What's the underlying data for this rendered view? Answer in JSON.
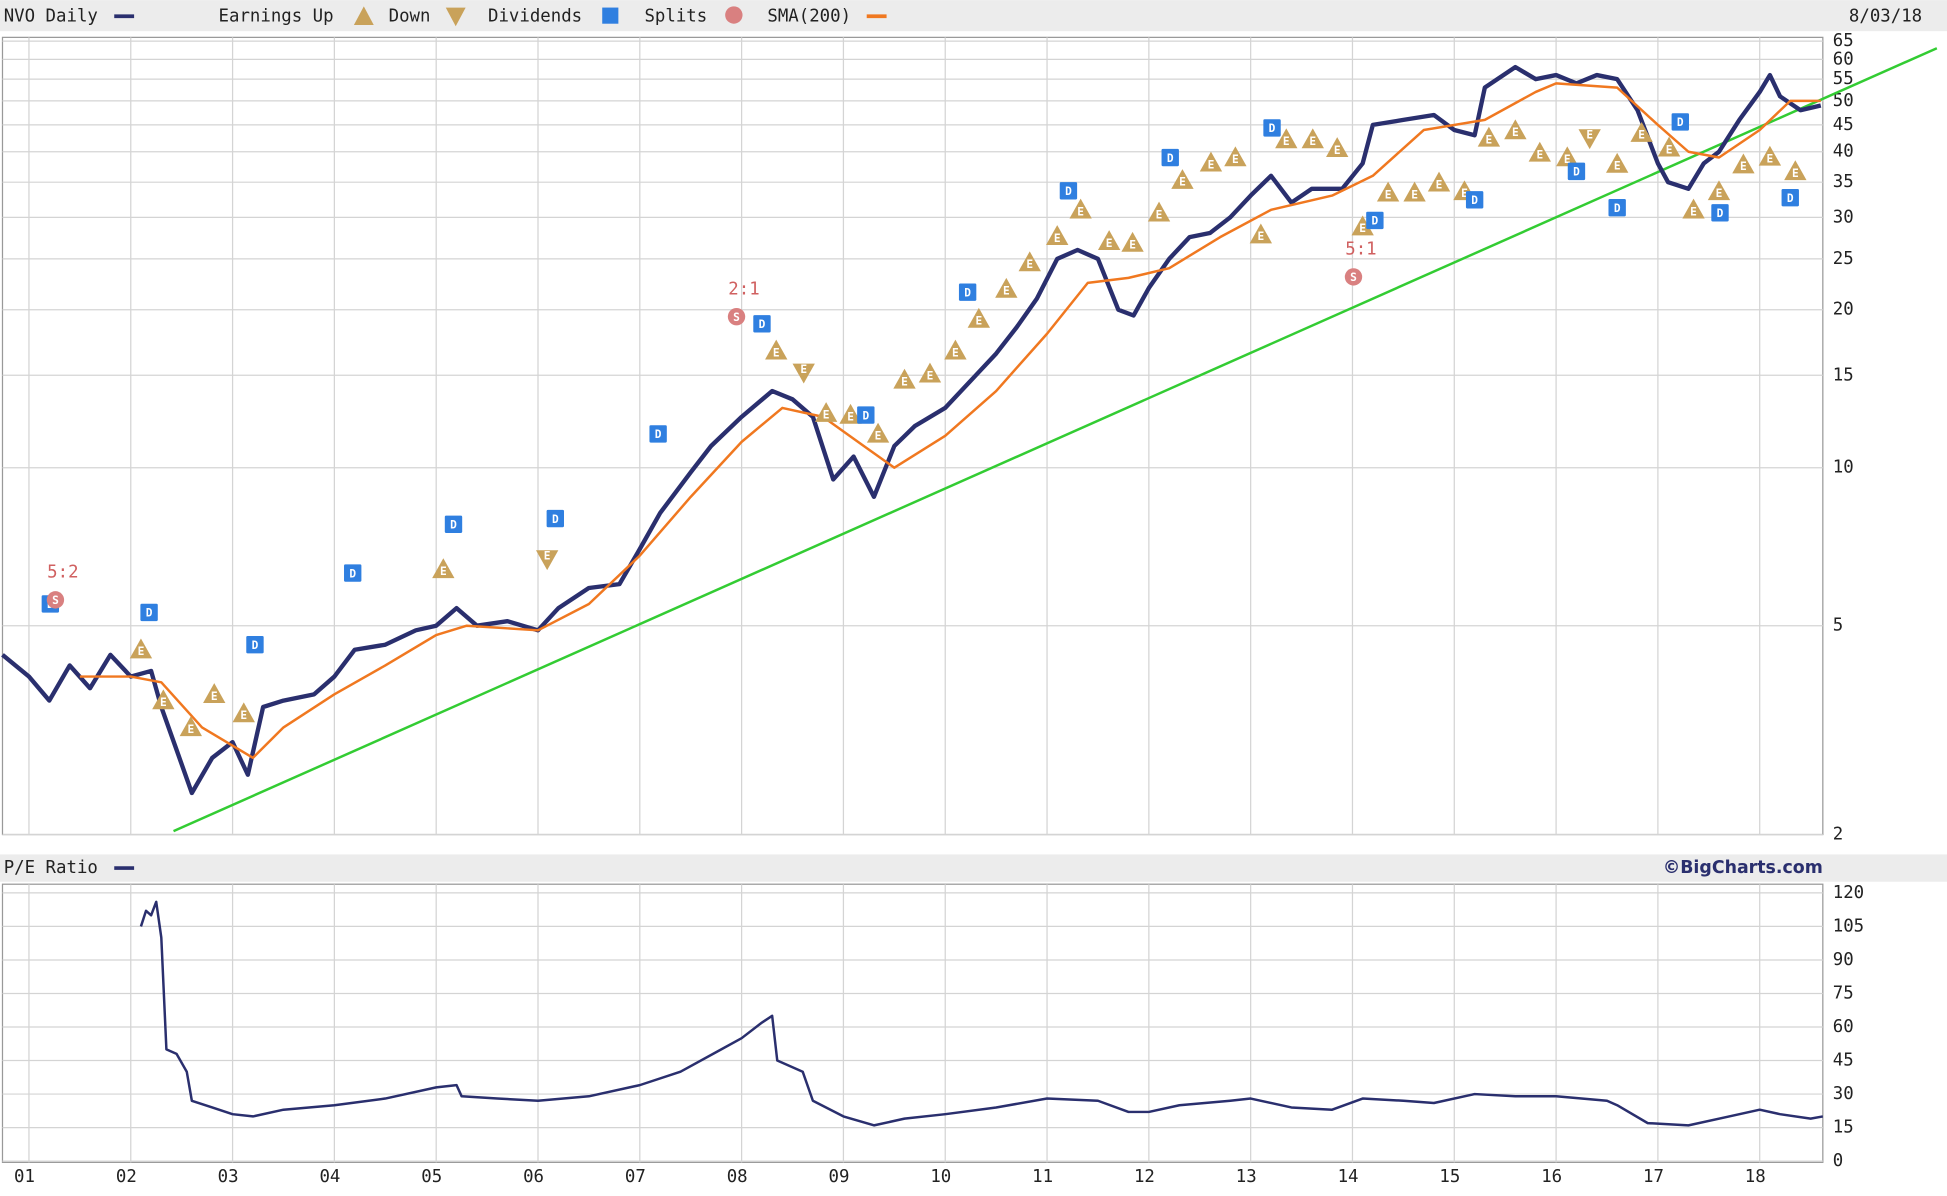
{
  "chart_data": [
    {
      "type": "line",
      "title": "NVO Daily",
      "date": "8/03/18",
      "log_y": true,
      "grid": true,
      "xlim": [
        0.74,
        18.62
      ],
      "ylim": [
        2,
        65
      ],
      "yticks": [
        2,
        5,
        10,
        15,
        20,
        25,
        30,
        35,
        40,
        45,
        50,
        55,
        60,
        65
      ],
      "series": [
        {
          "name": "NVO Daily",
          "color": "#2a2f6e",
          "x": [
            0.74,
            1.0,
            1.2,
            1.4,
            1.6,
            1.8,
            2.0,
            2.2,
            2.3,
            2.45,
            2.6,
            2.8,
            3.0,
            3.15,
            3.3,
            3.5,
            3.8,
            4.0,
            4.2,
            4.5,
            4.8,
            5.0,
            5.2,
            5.4,
            5.7,
            6.0,
            6.2,
            6.5,
            6.8,
            7.0,
            7.2,
            7.5,
            7.7,
            8.0,
            8.3,
            8.5,
            8.7,
            8.9,
            9.1,
            9.3,
            9.5,
            9.7,
            10.0,
            10.3,
            10.5,
            10.7,
            10.9,
            11.1,
            11.3,
            11.5,
            11.7,
            11.85,
            12.0,
            12.2,
            12.4,
            12.6,
            12.8,
            13.0,
            13.2,
            13.4,
            13.6,
            13.9,
            14.1,
            14.2,
            14.5,
            14.8,
            15.0,
            15.2,
            15.3,
            15.6,
            15.8,
            16.0,
            16.2,
            16.4,
            16.6,
            16.8,
            17.0,
            17.1,
            17.3,
            17.45,
            17.6,
            17.8,
            18.0,
            18.1,
            18.2,
            18.4,
            18.6
          ],
          "values": [
            4.4,
            4.0,
            3.6,
            4.2,
            3.8,
            4.4,
            4.0,
            4.1,
            3.5,
            2.9,
            2.4,
            2.8,
            3.0,
            2.6,
            3.5,
            3.6,
            3.7,
            4.0,
            4.5,
            4.6,
            4.9,
            5.0,
            5.4,
            5.0,
            5.1,
            4.9,
            5.4,
            5.9,
            6.0,
            7.0,
            8.2,
            9.8,
            11,
            12.5,
            14,
            13.5,
            12.5,
            9.5,
            10.5,
            8.8,
            11,
            12,
            13,
            15,
            16.5,
            18.5,
            21,
            25,
            26,
            25,
            20,
            19.5,
            22,
            25,
            27.5,
            28,
            30,
            33,
            36,
            32,
            34,
            34,
            38,
            45,
            46,
            47,
            44,
            43,
            53,
            58,
            55,
            56,
            54,
            56,
            55,
            48,
            38,
            35,
            34,
            38,
            40,
            46,
            52,
            56,
            51,
            48,
            49
          ]
        },
        {
          "name": "SMA(200)",
          "color": "#f07820",
          "x": [
            1.5,
            2.0,
            2.3,
            2.7,
            3.2,
            3.5,
            4.0,
            4.5,
            5.0,
            5.3,
            6.0,
            6.5,
            7.0,
            7.5,
            8.0,
            8.4,
            8.8,
            9.2,
            9.5,
            10.0,
            10.5,
            11.0,
            11.4,
            11.8,
            12.2,
            12.7,
            13.2,
            13.8,
            14.2,
            14.7,
            15.3,
            15.8,
            16.0,
            16.6,
            17.0,
            17.3,
            17.6,
            18.0,
            18.3,
            18.6
          ],
          "values": [
            4.0,
            4.0,
            3.9,
            3.2,
            2.8,
            3.2,
            3.7,
            4.2,
            4.8,
            5.0,
            4.9,
            5.5,
            6.8,
            8.8,
            11.2,
            13,
            12.5,
            11,
            10,
            11.5,
            14,
            18,
            22.5,
            23,
            24,
            27.5,
            31,
            33,
            36,
            44,
            46,
            52,
            54,
            53,
            45,
            40,
            39,
            44,
            50,
            50
          ]
        }
      ],
      "trendline": {
        "color": "#33cc33",
        "x": [
          2.42,
          19.74
        ],
        "values": [
          2.03,
          63
        ]
      },
      "events": {
        "earnings_up": {
          "label": "Earnings Up",
          "marker_text": "E",
          "color": "#c9a25a",
          "x": [
            2.1,
            2.32,
            2.82,
            2.59,
            3.11,
            5.07,
            8.34,
            8.83,
            9.07,
            9.34,
            9.6,
            9.85,
            10.1,
            10.33,
            10.6,
            10.83,
            11.1,
            11.33,
            11.61,
            11.84,
            12.1,
            12.33,
            12.61,
            12.85,
            13.1,
            13.35,
            13.61,
            13.85,
            14.1,
            14.35,
            14.61,
            14.85,
            15.1,
            15.34,
            15.6,
            15.84,
            16.11,
            16.6,
            16.84,
            17.11,
            17.35,
            17.6,
            17.84,
            18.1,
            18.35
          ],
          "values": [
            4.5,
            3.6,
            3.7,
            3.2,
            3.4,
            6.4,
            16.7,
            12.7,
            12.6,
            11.6,
            14.7,
            15.1,
            16.7,
            19.2,
            21.9,
            24.6,
            27.6,
            31,
            27,
            26.8,
            30.6,
            35.3,
            38.1,
            39,
            27.8,
            42.2,
            42.2,
            40.6,
            28.8,
            33.4,
            33.4,
            34.9,
            33.6,
            42.5,
            43.9,
            39.8,
            39,
            37.9,
            43.4,
            40.7,
            31,
            33.6,
            37.8,
            39.1,
            36.7
          ]
        },
        "earnings_down": {
          "label": "Down",
          "marker_text": "E",
          "color": "#c9a25a",
          "x": [
            6.09,
            8.61,
            16.33
          ],
          "values": [
            6.7,
            15.2,
            42.5
          ]
        },
        "dividends": {
          "label": "Dividends",
          "marker_text": "D",
          "color": "#2f7fe0",
          "x": [
            1.21,
            2.18,
            3.22,
            4.18,
            5.17,
            6.17,
            7.18,
            8.2,
            9.22,
            10.22,
            11.21,
            12.21,
            13.21,
            14.22,
            15.2,
            16.2,
            16.6,
            17.22,
            17.61,
            18.3
          ],
          "values": [
            5.5,
            5.3,
            4.6,
            6.3,
            7.8,
            8.0,
            11.6,
            18.8,
            12.6,
            21.6,
            33.7,
            39,
            44.4,
            29.6,
            32.4,
            36.7,
            31.3,
            45.6,
            30.6,
            32.7
          ]
        },
        "splits": {
          "label": "Splits",
          "marker_text": "S",
          "color": "#d98080",
          "x": [
            1.26,
            7.95,
            14.01
          ],
          "values": [
            5.6,
            19.4,
            23.1
          ],
          "ratios": [
            "5:2",
            "2:1",
            "5:1"
          ]
        }
      }
    },
    {
      "type": "line",
      "credit": "©BigCharts.com",
      "grid": true,
      "xlim": [
        0.74,
        18.62
      ],
      "ylim": [
        0,
        120
      ],
      "xticks": [
        {
          "value": 1,
          "label": "01"
        },
        {
          "value": 2,
          "label": "02"
        },
        {
          "value": 3,
          "label": "03"
        },
        {
          "value": 4,
          "label": "04"
        },
        {
          "value": 5,
          "label": "05"
        },
        {
          "value": 6,
          "label": "06"
        },
        {
          "value": 7,
          "label": "07"
        },
        {
          "value": 8,
          "label": "08"
        },
        {
          "value": 9,
          "label": "09"
        },
        10,
        11,
        12,
        13,
        14,
        15,
        16,
        17,
        18
      ],
      "yticks": [
        0,
        15,
        30,
        45,
        60,
        75,
        90,
        105,
        120
      ],
      "series": [
        {
          "name": "P/E Ratio",
          "color": "#2a2f6e",
          "x": [
            2.1,
            2.15,
            2.2,
            2.25,
            2.3,
            2.35,
            2.45,
            2.55,
            2.6,
            2.8,
            3.0,
            3.2,
            3.5,
            4.0,
            4.5,
            5.0,
            5.2,
            5.25,
            5.6,
            6.0,
            6.5,
            7.0,
            7.4,
            7.8,
            8.0,
            8.2,
            8.3,
            8.35,
            8.6,
            8.7,
            9.0,
            9.3,
            9.6,
            10.0,
            10.5,
            11.0,
            11.5,
            11.8,
            12.0,
            12.3,
            12.8,
            13.0,
            13.4,
            13.8,
            14.1,
            14.5,
            14.8,
            15.2,
            15.6,
            16.0,
            16.5,
            16.6,
            16.9,
            17.3,
            17.7,
            18.0,
            18.2,
            18.5,
            18.62
          ],
          "values": [
            105,
            112,
            110,
            116,
            100,
            50,
            48,
            40,
            27,
            24,
            21,
            20,
            23,
            25,
            28,
            33,
            34,
            29,
            28,
            27,
            29,
            34,
            40,
            50,
            55,
            62,
            65,
            45,
            40,
            27,
            20,
            16,
            19,
            21,
            24,
            28,
            27,
            22,
            22,
            25,
            27,
            28,
            24,
            23,
            28,
            27,
            26,
            30,
            29,
            29,
            27,
            25,
            17,
            16,
            20,
            23,
            21,
            19,
            20
          ]
        }
      ]
    }
  ]
}
